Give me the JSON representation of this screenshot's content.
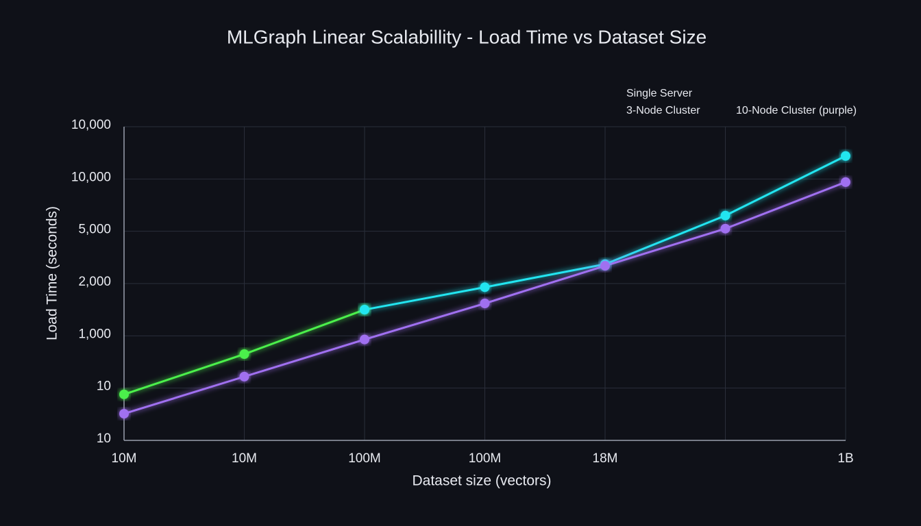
{
  "chart_data": {
    "type": "line",
    "title": "MLGraph Linear Scalabillity - Load Time vs Dataset Size",
    "x_label": "Dataset size (vectors)",
    "y_label": "Load Time (seconds)",
    "categories": [
      "10M",
      "10M",
      "100M",
      "100M",
      "18M",
      null,
      "1B"
    ],
    "ylim": [
      0,
      6
    ],
    "yticks": [
      {
        "value": 0,
        "label": "10"
      },
      {
        "value": 1,
        "label": "10"
      },
      {
        "value": 2,
        "label": "1,000"
      },
      {
        "value": 3,
        "label": "2,000"
      },
      {
        "value": 4,
        "label": "5,000"
      },
      {
        "value": 5,
        "label": "10,000"
      },
      {
        "value": 6,
        "label": "10,000"
      }
    ],
    "grid": true,
    "legend": "upper right",
    "series": [
      {
        "name": "Single Server",
        "color": "#4cf04c",
        "values": [
          0.88,
          1.65,
          2.5,
          null,
          null,
          null,
          null
        ]
      },
      {
        "name": "3-Node Cluster",
        "color": "#22e5f0",
        "values": [
          null,
          null,
          2.5,
          2.93,
          3.37,
          4.3,
          5.44
        ]
      },
      {
        "name": "10-Node Cluster (purple)",
        "color": "#a070f0",
        "values": [
          0.51,
          1.22,
          1.93,
          2.62,
          3.34,
          4.05,
          4.94
        ]
      }
    ]
  }
}
